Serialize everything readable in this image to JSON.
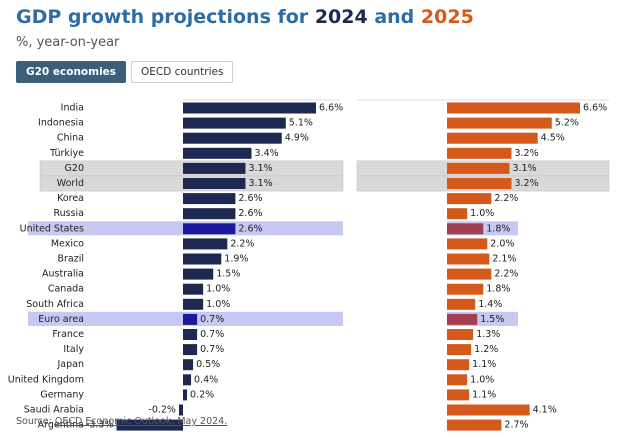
{
  "chart_data": {
    "type": "hbar",
    "title": "GDP growth projections for",
    "title_joiner": "and",
    "subtitle": "%, year-on-year",
    "tabs": [
      "G20 economies",
      "OECD countries"
    ],
    "active_tab": 0,
    "categories": [
      "India",
      "Indonesia",
      "China",
      "Türkiye",
      "G20",
      "World",
      "Korea",
      "Russia",
      "United States",
      "Mexico",
      "Brazil",
      "Australia",
      "Canada",
      "South Africa",
      "Euro area",
      "France",
      "Italy",
      "Japan",
      "United Kingdom",
      "Germany",
      "Saudi Arabia",
      "Argentina"
    ],
    "series": [
      {
        "name": "2024",
        "color": "#1d2951",
        "highlight_color": "#1a1a9e",
        "values": [
          6.6,
          5.1,
          4.9,
          3.4,
          3.1,
          3.1,
          2.6,
          2.6,
          2.6,
          2.2,
          1.9,
          1.5,
          1.0,
          1.0,
          0.7,
          0.7,
          0.7,
          0.5,
          0.4,
          0.2,
          -0.2,
          -3.3
        ],
        "value_labels": [
          "6.6%",
          "5.1%",
          "4.9%",
          "3.4%",
          "3.1%",
          "3.1%",
          "2.6%",
          "2.6%",
          "2.6%",
          "2.2%",
          "1.9%",
          "1.5%",
          "1.0%",
          "1.0%",
          "0.7%",
          "0.7%",
          "0.7%",
          "0.5%",
          "0.4%",
          "0.2%",
          "-0.2%",
          "-3.3%"
        ]
      },
      {
        "name": "2025",
        "color": "#d35a1a",
        "highlight_color": "#a0404e",
        "values": [
          6.6,
          5.2,
          4.5,
          3.2,
          3.1,
          3.2,
          2.2,
          1.0,
          1.8,
          2.0,
          2.1,
          2.2,
          1.8,
          1.4,
          1.5,
          1.3,
          1.2,
          1.1,
          1.0,
          1.1,
          4.1,
          2.7
        ],
        "value_labels": [
          "6.6%",
          "5.2%",
          "4.5%",
          "3.2%",
          "3.1%",
          "3.2%",
          "2.2%",
          "1.0%",
          "1.8%",
          "2.0%",
          "2.1%",
          "2.2%",
          "1.8%",
          "1.4%",
          "1.5%",
          "1.3%",
          "1.2%",
          "1.1%",
          "1.0%",
          "1.1%",
          "4.1%",
          "2.7%"
        ]
      }
    ],
    "highlight_gray": [
      4,
      5
    ],
    "highlight_blue": [
      8,
      14
    ],
    "source_prefix": "Source:",
    "source_link": "OECD Economic Outlook, May 2024."
  }
}
